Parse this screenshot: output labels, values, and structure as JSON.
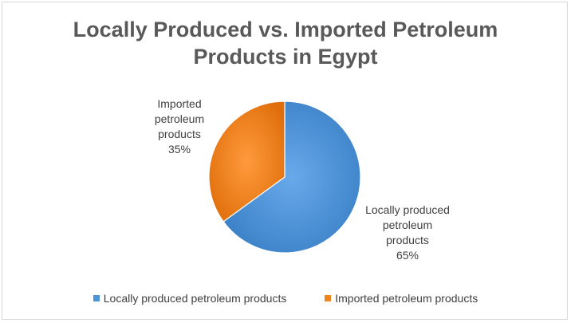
{
  "chart_data": {
    "type": "pie",
    "title": "Locally Produced vs. Imported Petroleum Products in Egypt",
    "categories": [
      "Locally produced petroleum products",
      "Imported petroleum products"
    ],
    "values": [
      65,
      35
    ],
    "labels": [
      {
        "name_lines": [
          "Locally produced",
          "petroleum",
          "products"
        ],
        "percent": "65%"
      },
      {
        "name_lines": [
          "Imported",
          "petroleum",
          "products"
        ],
        "percent": "35%"
      }
    ],
    "colors": [
      "#4e94d8",
      "#f0841e"
    ],
    "legend_position": "bottom",
    "start_angle_degrees": 0,
    "direction": "clockwise"
  }
}
